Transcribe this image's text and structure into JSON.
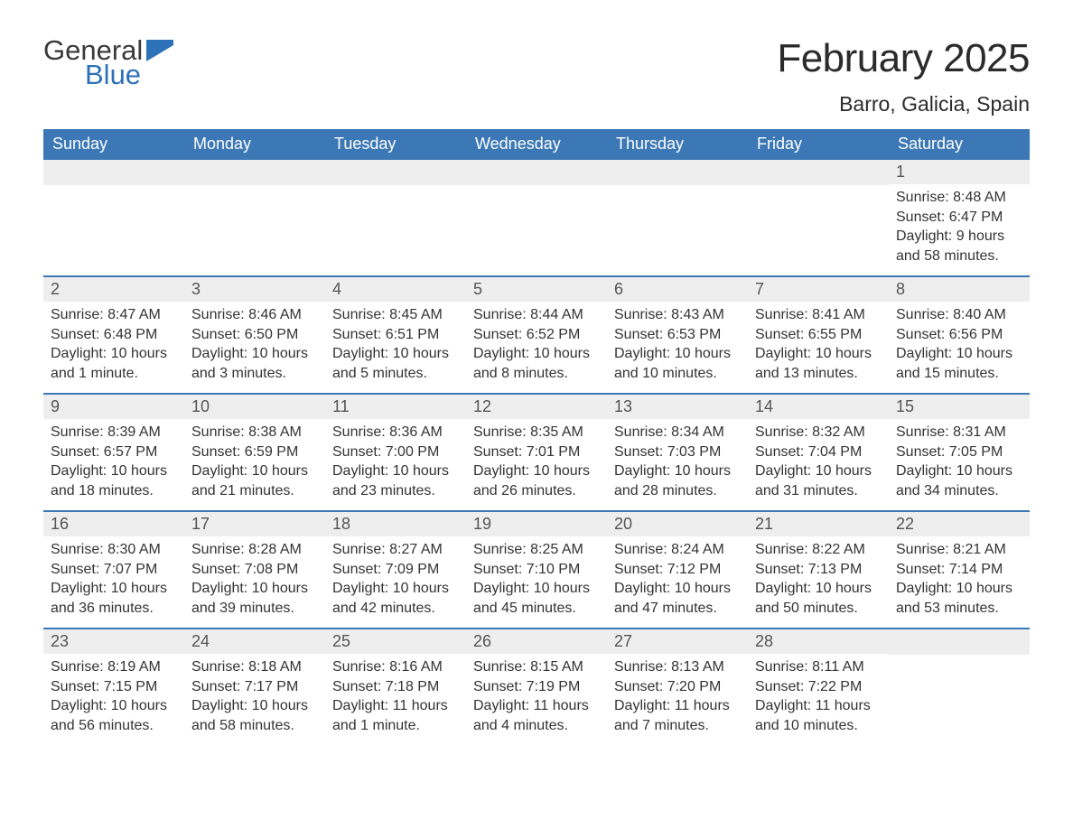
{
  "logo": {
    "word1": "General",
    "word2": "Blue",
    "icon_color": "#2d72b8"
  },
  "title": "February 2025",
  "location": "Barro, Galicia, Spain",
  "colors": {
    "header_bg": "#3b78b5",
    "header_text": "#ffffff",
    "daynum_bg": "#eeeeee",
    "week_border": "#3b78b5",
    "body_text": "#333333",
    "title_text": "#2b2b2b"
  },
  "typography": {
    "title_fontsize": 44,
    "location_fontsize": 23,
    "weekday_fontsize": 18,
    "daynum_fontsize": 18,
    "cell_fontsize": 16
  },
  "weekdays": [
    "Sunday",
    "Monday",
    "Tuesday",
    "Wednesday",
    "Thursday",
    "Friday",
    "Saturday"
  ],
  "weeks": [
    [
      {
        "day": null
      },
      {
        "day": null
      },
      {
        "day": null
      },
      {
        "day": null
      },
      {
        "day": null
      },
      {
        "day": null
      },
      {
        "day": "1",
        "sunrise": "Sunrise: 8:48 AM",
        "sunset": "Sunset: 6:47 PM",
        "daylight": "Daylight: 9 hours and 58 minutes."
      }
    ],
    [
      {
        "day": "2",
        "sunrise": "Sunrise: 8:47 AM",
        "sunset": "Sunset: 6:48 PM",
        "daylight": "Daylight: 10 hours and 1 minute."
      },
      {
        "day": "3",
        "sunrise": "Sunrise: 8:46 AM",
        "sunset": "Sunset: 6:50 PM",
        "daylight": "Daylight: 10 hours and 3 minutes."
      },
      {
        "day": "4",
        "sunrise": "Sunrise: 8:45 AM",
        "sunset": "Sunset: 6:51 PM",
        "daylight": "Daylight: 10 hours and 5 minutes."
      },
      {
        "day": "5",
        "sunrise": "Sunrise: 8:44 AM",
        "sunset": "Sunset: 6:52 PM",
        "daylight": "Daylight: 10 hours and 8 minutes."
      },
      {
        "day": "6",
        "sunrise": "Sunrise: 8:43 AM",
        "sunset": "Sunset: 6:53 PM",
        "daylight": "Daylight: 10 hours and 10 minutes."
      },
      {
        "day": "7",
        "sunrise": "Sunrise: 8:41 AM",
        "sunset": "Sunset: 6:55 PM",
        "daylight": "Daylight: 10 hours and 13 minutes."
      },
      {
        "day": "8",
        "sunrise": "Sunrise: 8:40 AM",
        "sunset": "Sunset: 6:56 PM",
        "daylight": "Daylight: 10 hours and 15 minutes."
      }
    ],
    [
      {
        "day": "9",
        "sunrise": "Sunrise: 8:39 AM",
        "sunset": "Sunset: 6:57 PM",
        "daylight": "Daylight: 10 hours and 18 minutes."
      },
      {
        "day": "10",
        "sunrise": "Sunrise: 8:38 AM",
        "sunset": "Sunset: 6:59 PM",
        "daylight": "Daylight: 10 hours and 21 minutes."
      },
      {
        "day": "11",
        "sunrise": "Sunrise: 8:36 AM",
        "sunset": "Sunset: 7:00 PM",
        "daylight": "Daylight: 10 hours and 23 minutes."
      },
      {
        "day": "12",
        "sunrise": "Sunrise: 8:35 AM",
        "sunset": "Sunset: 7:01 PM",
        "daylight": "Daylight: 10 hours and 26 minutes."
      },
      {
        "day": "13",
        "sunrise": "Sunrise: 8:34 AM",
        "sunset": "Sunset: 7:03 PM",
        "daylight": "Daylight: 10 hours and 28 minutes."
      },
      {
        "day": "14",
        "sunrise": "Sunrise: 8:32 AM",
        "sunset": "Sunset: 7:04 PM",
        "daylight": "Daylight: 10 hours and 31 minutes."
      },
      {
        "day": "15",
        "sunrise": "Sunrise: 8:31 AM",
        "sunset": "Sunset: 7:05 PM",
        "daylight": "Daylight: 10 hours and 34 minutes."
      }
    ],
    [
      {
        "day": "16",
        "sunrise": "Sunrise: 8:30 AM",
        "sunset": "Sunset: 7:07 PM",
        "daylight": "Daylight: 10 hours and 36 minutes."
      },
      {
        "day": "17",
        "sunrise": "Sunrise: 8:28 AM",
        "sunset": "Sunset: 7:08 PM",
        "daylight": "Daylight: 10 hours and 39 minutes."
      },
      {
        "day": "18",
        "sunrise": "Sunrise: 8:27 AM",
        "sunset": "Sunset: 7:09 PM",
        "daylight": "Daylight: 10 hours and 42 minutes."
      },
      {
        "day": "19",
        "sunrise": "Sunrise: 8:25 AM",
        "sunset": "Sunset: 7:10 PM",
        "daylight": "Daylight: 10 hours and 45 minutes."
      },
      {
        "day": "20",
        "sunrise": "Sunrise: 8:24 AM",
        "sunset": "Sunset: 7:12 PM",
        "daylight": "Daylight: 10 hours and 47 minutes."
      },
      {
        "day": "21",
        "sunrise": "Sunrise: 8:22 AM",
        "sunset": "Sunset: 7:13 PM",
        "daylight": "Daylight: 10 hours and 50 minutes."
      },
      {
        "day": "22",
        "sunrise": "Sunrise: 8:21 AM",
        "sunset": "Sunset: 7:14 PM",
        "daylight": "Daylight: 10 hours and 53 minutes."
      }
    ],
    [
      {
        "day": "23",
        "sunrise": "Sunrise: 8:19 AM",
        "sunset": "Sunset: 7:15 PM",
        "daylight": "Daylight: 10 hours and 56 minutes."
      },
      {
        "day": "24",
        "sunrise": "Sunrise: 8:18 AM",
        "sunset": "Sunset: 7:17 PM",
        "daylight": "Daylight: 10 hours and 58 minutes."
      },
      {
        "day": "25",
        "sunrise": "Sunrise: 8:16 AM",
        "sunset": "Sunset: 7:18 PM",
        "daylight": "Daylight: 11 hours and 1 minute."
      },
      {
        "day": "26",
        "sunrise": "Sunrise: 8:15 AM",
        "sunset": "Sunset: 7:19 PM",
        "daylight": "Daylight: 11 hours and 4 minutes."
      },
      {
        "day": "27",
        "sunrise": "Sunrise: 8:13 AM",
        "sunset": "Sunset: 7:20 PM",
        "daylight": "Daylight: 11 hours and 7 minutes."
      },
      {
        "day": "28",
        "sunrise": "Sunrise: 8:11 AM",
        "sunset": "Sunset: 7:22 PM",
        "daylight": "Daylight: 11 hours and 10 minutes."
      },
      {
        "day": null
      }
    ]
  ]
}
